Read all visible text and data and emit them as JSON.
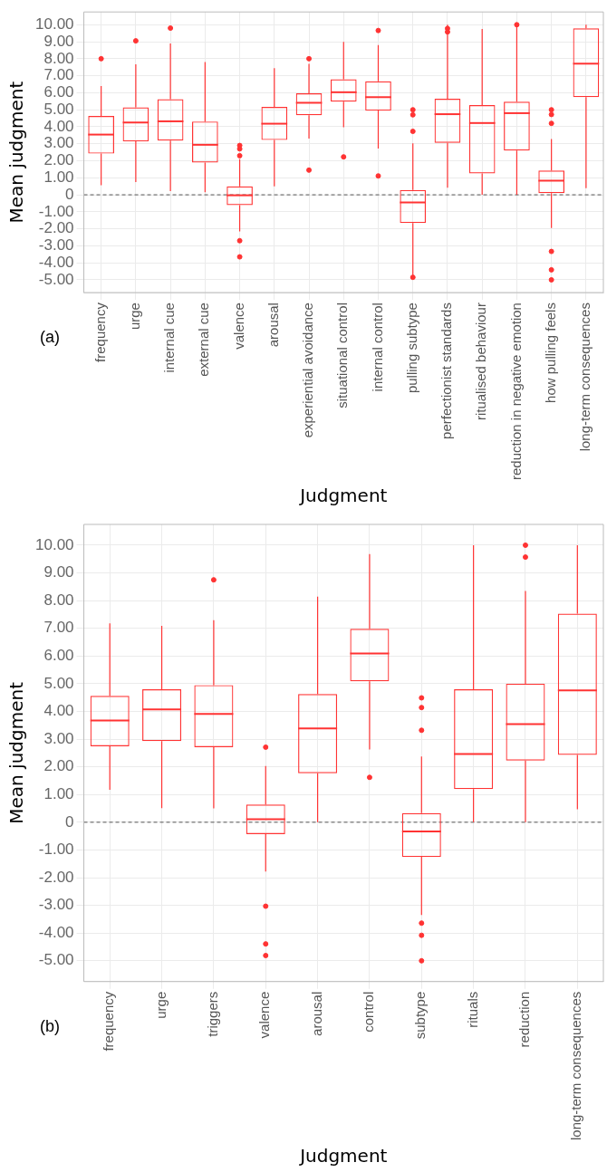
{
  "chart_data": [
    {
      "type": "box",
      "xlabel": "Judgment",
      "ylabel": "Mean judgment",
      "annotations": [
        "(a)"
      ],
      "categories": [
        "frequency",
        "urge",
        "internal cue",
        "external cue",
        "valence",
        "arousal",
        "experiential avoidance",
        "situational control",
        "internal control",
        "pulling subtype",
        "perfectionist standards",
        "ritualised behaviour",
        "reduction in negative emotion",
        "how pulling feels",
        "long-term consequences"
      ],
      "ylim": [
        -5.75,
        10.75
      ],
      "yticks": [
        {
          "value": -5,
          "label": "-5.00"
        },
        {
          "value": -4,
          "label": "-4.00"
        },
        {
          "value": -3,
          "label": "-3.00"
        },
        {
          "value": -2,
          "label": "-2.00"
        },
        {
          "value": -1,
          "label": "-1.00"
        },
        0,
        {
          "value": 1,
          "label": "1.00"
        },
        {
          "value": 2,
          "label": "2.00"
        },
        {
          "value": 3,
          "label": "3.00"
        },
        {
          "value": 4,
          "label": "4.00"
        },
        {
          "value": 5,
          "label": "5.00"
        },
        {
          "value": 6,
          "label": "6.00"
        },
        {
          "value": 7,
          "label": "7.00"
        },
        {
          "value": 8,
          "label": "8.00"
        },
        {
          "value": 9,
          "label": "9.00"
        },
        {
          "value": 10,
          "label": "10.00"
        }
      ],
      "grid": true,
      "ref_lines": [
        {
          "axis": "y",
          "value": 0,
          "line_style": "dashed",
          "color": "#555555"
        }
      ],
      "series": [
        {
          "color": "#ff3333",
          "boxes": [
            {
              "low": 0.56,
              "q1": 2.42,
              "median": 3.54,
              "q3": 4.64,
              "high": 6.39,
              "outliers": [
                8.0
              ]
            },
            {
              "low": 0.75,
              "q1": 3.14,
              "median": 4.25,
              "q3": 5.14,
              "high": 7.67,
              "outliers": [
                9.05
              ]
            },
            {
              "low": 0.22,
              "q1": 3.19,
              "median": 4.32,
              "q3": 5.62,
              "high": 8.9,
              "outliers": [
                9.8
              ]
            },
            {
              "low": 0.15,
              "q1": 1.9,
              "median": 2.94,
              "q3": 4.31,
              "high": 7.8
            },
            {
              "low": -2.15,
              "q1": -0.61,
              "median": -0.03,
              "q3": 0.5,
              "high": 2.1,
              "outliers": [
                2.9,
                2.7,
                2.3,
                -2.7,
                -3.65
              ]
            },
            {
              "low": 0.5,
              "q1": 3.22,
              "median": 4.18,
              "q3": 5.17,
              "high": 7.45
            },
            {
              "low": 3.3,
              "q1": 4.68,
              "median": 5.41,
              "q3": 5.97,
              "high": 7.7,
              "outliers": [
                8.0,
                1.45
              ]
            },
            {
              "low": 3.97,
              "q1": 5.48,
              "median": 6.03,
              "q3": 6.79,
              "high": 8.99,
              "outliers": [
                2.23
              ]
            },
            {
              "low": 2.72,
              "q1": 4.95,
              "median": 5.74,
              "q3": 6.67,
              "high": 8.81,
              "outliers": [
                9.66,
                1.11
              ]
            },
            {
              "low": -4.78,
              "q1": -1.66,
              "median": -0.45,
              "q3": 0.28,
              "high": 3.02,
              "outliers": [
                5.0,
                4.7,
                3.73,
                -4.85
              ]
            },
            {
              "low": 0.42,
              "q1": 3.05,
              "median": 4.74,
              "q3": 5.65,
              "high": 10.0,
              "outliers": [
                9.78,
                9.58
              ]
            },
            {
              "low": 0.0,
              "q1": 1.26,
              "median": 4.22,
              "q3": 5.27,
              "high": 9.75
            },
            {
              "low": 0.0,
              "q1": 2.6,
              "median": 4.8,
              "q3": 5.47,
              "high": 10.0,
              "outliers": [
                10.0
              ]
            },
            {
              "low": -1.96,
              "q1": 0.1,
              "median": 0.83,
              "q3": 1.43,
              "high": 3.28,
              "outliers": [
                5.0,
                4.72,
                4.2,
                -3.33,
                -4.41,
                -5.0
              ]
            },
            {
              "low": 0.39,
              "q1": 5.74,
              "median": 7.71,
              "q3": 9.79,
              "high": 10.0
            }
          ]
        }
      ]
    },
    {
      "type": "box",
      "xlabel": "Judgment",
      "ylabel": "Mean judgment",
      "annotations": [
        "(b)"
      ],
      "categories": [
        "frequency",
        "urge",
        "triggers",
        "valence",
        "arousal",
        "control",
        "subtype",
        "rituals",
        "reduction",
        "long-term consequences"
      ],
      "ylim": [
        -5.75,
        10.75
      ],
      "yticks": [
        {
          "value": -5,
          "label": "-5.00"
        },
        {
          "value": -4,
          "label": "-4.00"
        },
        {
          "value": -3,
          "label": "-3.00"
        },
        {
          "value": -2,
          "label": "-2.00"
        },
        {
          "value": -1,
          "label": "-1.00"
        },
        0,
        {
          "value": 1,
          "label": "1.00"
        },
        {
          "value": 2,
          "label": "2.00"
        },
        {
          "value": 3,
          "label": "3.00"
        },
        {
          "value": 4,
          "label": "4.00"
        },
        {
          "value": 5,
          "label": "5.00"
        },
        {
          "value": 6,
          "label": "6.00"
        },
        {
          "value": 7,
          "label": "7.00"
        },
        {
          "value": 8,
          "label": "8.00"
        },
        {
          "value": 9,
          "label": "9.00"
        },
        {
          "value": 10,
          "label": "10.00"
        }
      ],
      "grid": true,
      "ref_lines": [
        {
          "axis": "y",
          "value": 0,
          "line_style": "dashed",
          "color": "#555555"
        }
      ],
      "series": [
        {
          "color": "#ff3333",
          "boxes": [
            {
              "low": 1.17,
              "q1": 2.74,
              "median": 3.67,
              "q3": 4.56,
              "high": 7.18
            },
            {
              "low": 0.51,
              "q1": 2.93,
              "median": 4.07,
              "q3": 4.8,
              "high": 7.09
            },
            {
              "low": 0.5,
              "q1": 2.71,
              "median": 3.91,
              "q3": 4.95,
              "high": 7.29,
              "outliers": [
                8.75
              ]
            },
            {
              "low": -1.78,
              "q1": -0.43,
              "median": 0.11,
              "q3": 0.64,
              "high": 2.03,
              "outliers": [
                2.71,
                -3.03,
                -4.39,
                -4.81
              ]
            },
            {
              "low": 0.0,
              "q1": 1.77,
              "median": 3.39,
              "q3": 4.63,
              "high": 8.14
            },
            {
              "low": 2.63,
              "q1": 5.09,
              "median": 6.09,
              "q3": 6.98,
              "high": 9.68,
              "outliers": [
                1.62
              ]
            },
            {
              "low": -3.35,
              "q1": -1.25,
              "median": -0.33,
              "q3": 0.33,
              "high": 2.37,
              "outliers": [
                4.49,
                4.14,
                3.32,
                -3.64,
                -4.08,
                -5.0
              ]
            },
            {
              "low": 0.0,
              "q1": 1.2,
              "median": 2.46,
              "q3": 4.8,
              "high": 10.0
            },
            {
              "low": 0.0,
              "q1": 2.23,
              "median": 3.54,
              "q3": 5.0,
              "high": 8.35,
              "outliers": [
                9.57,
                10.0
              ]
            },
            {
              "low": 0.47,
              "q1": 2.43,
              "median": 4.76,
              "q3": 7.53,
              "high": 10.0
            }
          ]
        }
      ]
    }
  ]
}
